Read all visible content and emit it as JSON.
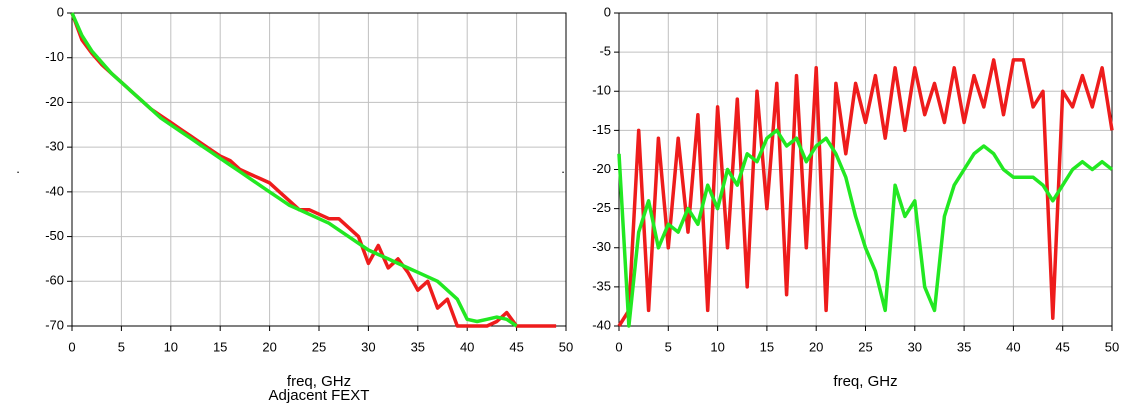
{
  "chart_data": [
    {
      "type": "line",
      "xlabel": "freq, GHz",
      "subtitle": "Adjacent FEXT",
      "ylabel": ".",
      "xlim": [
        0,
        50
      ],
      "xticks": [
        0,
        5,
        10,
        15,
        20,
        25,
        30,
        35,
        40,
        45,
        50
      ],
      "ylim": [
        -70,
        0
      ],
      "yticks": [
        0,
        -10,
        -20,
        -30,
        -40,
        -50,
        -60,
        -70
      ],
      "grid": true,
      "series": [
        {
          "color": "#ee1c1c",
          "x": [
            0,
            1,
            2,
            3,
            4,
            5,
            6,
            7,
            8,
            9,
            10,
            11,
            12,
            13,
            14,
            15,
            16,
            17,
            18,
            19,
            20,
            21,
            22,
            23,
            24,
            25,
            26,
            27,
            28,
            29,
            30,
            31,
            32,
            33,
            34,
            35,
            36,
            37,
            38,
            39,
            40,
            41,
            42,
            43,
            44,
            45,
            46,
            47,
            48,
            49
          ],
          "values": [
            0,
            -6,
            -9,
            -11.5,
            -13.5,
            -15.5,
            -17.5,
            -19.5,
            -21.5,
            -23,
            -24.5,
            -26,
            -27.5,
            -29,
            -30.5,
            -32,
            -33,
            -35,
            -36,
            -37,
            -38,
            -40,
            -42,
            -44,
            -44,
            -45,
            -46,
            -46,
            -48,
            -50,
            -56,
            -52,
            -57,
            -55,
            -58,
            -62,
            -60,
            -66,
            -64,
            -70,
            -70,
            -70,
            -70,
            -69,
            -67,
            -70,
            -70,
            -70,
            -70,
            -70
          ]
        },
        {
          "color": "#22e822",
          "x": [
            0,
            1,
            2,
            3,
            4,
            5,
            6,
            7,
            8,
            9,
            10,
            11,
            12,
            13,
            14,
            15,
            16,
            17,
            18,
            19,
            20,
            21,
            22,
            23,
            24,
            25,
            26,
            27,
            28,
            29,
            30,
            31,
            32,
            33,
            34,
            35,
            36,
            37,
            38,
            39,
            40,
            41,
            42,
            43,
            44,
            45
          ],
          "values": [
            0,
            -5,
            -8.5,
            -11,
            -13.5,
            -15.5,
            -17.5,
            -19.5,
            -21.5,
            -23.5,
            -25,
            -26.5,
            -28,
            -29.5,
            -31,
            -32.5,
            -34,
            -35.5,
            -37,
            -38.5,
            -40,
            -41.5,
            -43,
            -44,
            -45,
            -46,
            -47,
            -48.5,
            -50,
            -51.5,
            -53,
            -54,
            -55,
            -56,
            -57,
            -58,
            -59,
            -60,
            -62,
            -64,
            -68.5,
            -69,
            -68.5,
            -68,
            -68.5,
            -70
          ]
        }
      ]
    },
    {
      "type": "line",
      "xlabel": "freq, GHz",
      "ylabel": ".",
      "xlim": [
        0,
        50
      ],
      "xticks": [
        0,
        5,
        10,
        15,
        20,
        25,
        30,
        35,
        40,
        45,
        50
      ],
      "ylim": [
        -40,
        0
      ],
      "yticks": [
        0,
        -5,
        -10,
        -15,
        -20,
        -25,
        -30,
        -35,
        -40
      ],
      "grid": true,
      "series": [
        {
          "color": "#ee1c1c",
          "x": [
            0,
            1,
            2,
            3,
            4,
            5,
            6,
            7,
            8,
            9,
            10,
            11,
            12,
            13,
            14,
            15,
            16,
            17,
            18,
            19,
            20,
            21,
            22,
            23,
            24,
            25,
            26,
            27,
            28,
            29,
            30,
            31,
            32,
            33,
            34,
            35,
            36,
            37,
            38,
            39,
            40,
            41,
            42,
            43,
            44,
            45,
            46,
            47,
            48,
            49,
            50
          ],
          "values": [
            -40,
            -38,
            -15,
            -38,
            -16,
            -30,
            -16,
            -28,
            -13,
            -38,
            -12,
            -30,
            -11,
            -35,
            -10,
            -25,
            -9,
            -36,
            -8,
            -30,
            -7,
            -38,
            -9,
            -18,
            -9,
            -14,
            -8,
            -16,
            -7,
            -15,
            -7,
            -13,
            -9,
            -14,
            -7,
            -14,
            -8,
            -12,
            -6,
            -13,
            -6,
            -6,
            -12,
            -10,
            -39,
            -10,
            -12,
            -8,
            -12,
            -7,
            -15
          ]
        },
        {
          "color": "#22e822",
          "x": [
            0,
            1,
            2,
            3,
            4,
            5,
            6,
            7,
            8,
            9,
            10,
            11,
            12,
            13,
            14,
            15,
            16,
            17,
            18,
            19,
            20,
            21,
            22,
            23,
            24,
            25,
            26,
            27,
            28,
            29,
            30,
            31,
            32,
            33,
            34,
            35,
            36,
            37,
            38,
            39,
            40,
            41,
            42,
            43,
            44,
            45,
            46,
            47,
            48,
            49,
            50
          ],
          "values": [
            -18,
            -40,
            -28,
            -24,
            -30,
            -27,
            -28,
            -25,
            -27,
            -22,
            -25,
            -20,
            -22,
            -18,
            -19,
            -16,
            -15,
            -17,
            -16,
            -19,
            -17,
            -16,
            -18,
            -21,
            -26,
            -30,
            -33,
            -38,
            -22,
            -26,
            -24,
            -35,
            -38,
            -26,
            -22,
            -20,
            -18,
            -17,
            -18,
            -20,
            -21,
            -21,
            -21,
            -22,
            -24,
            -22,
            -20,
            -19,
            -20,
            -19,
            -20
          ]
        }
      ]
    }
  ]
}
